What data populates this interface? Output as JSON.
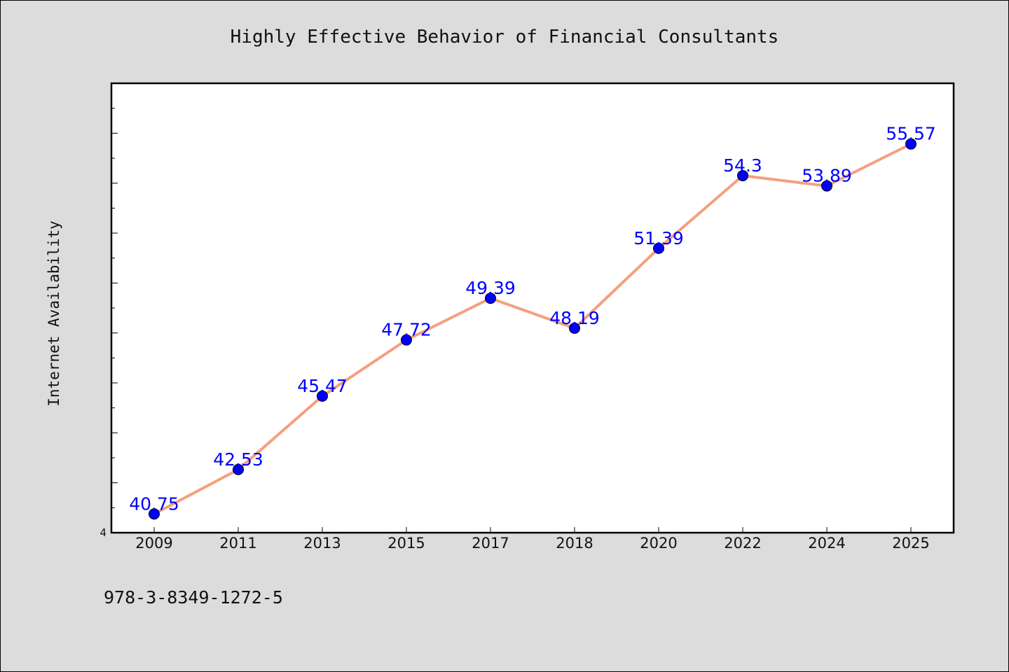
{
  "chart_data": {
    "type": "line",
    "title": "Highly Effective Behavior of Financial Consultants",
    "xlabel": "",
    "ylabel": "Internet Availability",
    "categories": [
      "2009",
      "2011",
      "2013",
      "2015",
      "2017",
      "2018",
      "2020",
      "2022",
      "2024",
      "2025"
    ],
    "series": [
      {
        "values": [
          40.75,
          42.53,
          45.47,
          47.72,
          49.39,
          48.19,
          51.39,
          54.3,
          53.89,
          55.57
        ],
        "labels": [
          "40.75",
          "42.53",
          "45.47",
          "47.72",
          "49.39",
          "48.19",
          "51.39",
          "54.3",
          "53.89",
          "55.57"
        ],
        "line_color": "#f4a07f",
        "marker_color": "#0000ff"
      }
    ],
    "y_tick_labels": [
      "4"
    ],
    "ylim": [
      40,
      58
    ],
    "grid": false,
    "legend": "none"
  },
  "footer": {
    "isbn": "978-3-8349-1272-5"
  }
}
